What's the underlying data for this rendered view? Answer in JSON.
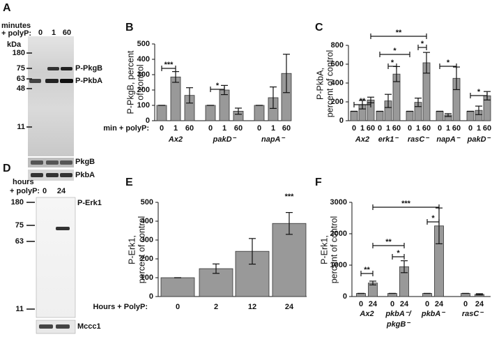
{
  "blots": {
    "A": {
      "panel": "A",
      "header": [
        "minutes",
        "+ polyP:"
      ],
      "lanes": [
        "0",
        "1",
        "60"
      ],
      "unit": "kDa",
      "markers": [
        "180",
        "75",
        "63",
        "48",
        "11"
      ],
      "bands": [
        "P-PkgB",
        "P-PkbA"
      ],
      "strips": [
        "PkgB",
        "PkbA"
      ]
    },
    "D": {
      "panel": "D",
      "header": [
        "hours",
        "+ polyP:"
      ],
      "lanes": [
        "0",
        "24"
      ],
      "markers": [
        "180",
        "75",
        "63",
        "11"
      ],
      "bands": [
        "P-Erk1"
      ],
      "strips": [
        "Mccc1"
      ]
    }
  },
  "chart_data": [
    {
      "type": "bar",
      "panel": "B",
      "ylabel": [
        "P-PkgB, percent",
        "of control"
      ],
      "xlabel": "min + polyP:",
      "ylim": [
        0,
        500
      ],
      "yticks": [
        0,
        100,
        200,
        300,
        400,
        500
      ],
      "color": "#999999",
      "groups": [
        {
          "name": "Ax2",
          "categories": [
            "0",
            "1",
            "60"
          ],
          "values": [
            100,
            285,
            165
          ],
          "errors": [
            0,
            35,
            50
          ]
        },
        {
          "name": "pakD⁻",
          "categories": [
            "0",
            "1",
            "60"
          ],
          "values": [
            100,
            200,
            62
          ],
          "errors": [
            0,
            30,
            20
          ]
        },
        {
          "name": "napA⁻",
          "categories": [
            "0",
            "1",
            "60"
          ],
          "values": [
            100,
            150,
            308
          ],
          "errors": [
            0,
            70,
            125
          ]
        }
      ],
      "annotations": [
        "***",
        "*"
      ]
    },
    {
      "type": "bar",
      "panel": "C",
      "ylabel": [
        "P-PkbA,",
        "percent of control"
      ],
      "ylim": [
        0,
        800
      ],
      "yticks": [
        0,
        200,
        400,
        600,
        800
      ],
      "color": "#999999",
      "groups": [
        {
          "name": "Ax2",
          "categories": [
            "0",
            "1",
            "60"
          ],
          "values": [
            100,
            170,
            220
          ],
          "errors": [
            0,
            45,
            30
          ]
        },
        {
          "name": "erk1⁻",
          "categories": [
            "0",
            "1",
            "60"
          ],
          "values": [
            100,
            210,
            495
          ],
          "errors": [
            0,
            70,
            80
          ]
        },
        {
          "name": "rasC⁻",
          "categories": [
            "0",
            "1",
            "60"
          ],
          "values": [
            100,
            195,
            615
          ],
          "errors": [
            0,
            45,
            110
          ]
        },
        {
          "name": "napA⁻",
          "categories": [
            "0",
            "1",
            "60"
          ],
          "values": [
            100,
            60,
            450
          ],
          "errors": [
            0,
            15,
            120
          ]
        },
        {
          "name": "pakD⁻",
          "categories": [
            "0",
            "1",
            "60"
          ],
          "values": [
            100,
            110,
            265
          ],
          "errors": [
            0,
            45,
            45
          ]
        }
      ],
      "annotations": [
        "**",
        "*",
        "*",
        "**",
        "*",
        "*",
        "*"
      ]
    },
    {
      "type": "bar",
      "panel": "E",
      "ylabel": [
        "P-Erk1,",
        "percent of control"
      ],
      "xlabel": "Hours + PolyP:",
      "ylim": [
        0,
        500
      ],
      "yticks": [
        0,
        100,
        200,
        300,
        400,
        500
      ],
      "color": "#999999",
      "categories": [
        "0",
        "2",
        "12",
        "24"
      ],
      "values": [
        100,
        148,
        240,
        388
      ],
      "errors": [
        0,
        25,
        68,
        58
      ],
      "annotations": [
        "***"
      ]
    },
    {
      "type": "bar",
      "panel": "F",
      "ylabel": [
        "P-Erk1,",
        "percent of control"
      ],
      "ylim": [
        0,
        3000
      ],
      "yticks": [
        0,
        1000,
        2000,
        3000
      ],
      "color": "#999999",
      "groups": [
        {
          "name": "Ax2",
          "categories": [
            "0",
            "24"
          ],
          "values": [
            100,
            430
          ],
          "errors": [
            0,
            60
          ]
        },
        {
          "name": "pkbA⁻/pkgB⁻",
          "categories": [
            "0",
            "24"
          ],
          "values": [
            100,
            950
          ],
          "errors": [
            0,
            190
          ]
        },
        {
          "name": "pkbA⁻",
          "categories": [
            "0",
            "24"
          ],
          "values": [
            100,
            2250
          ],
          "errors": [
            0,
            570
          ]
        },
        {
          "name": "rasC⁻",
          "categories": [
            "0",
            "24"
          ],
          "values": [
            100,
            70
          ],
          "errors": [
            0,
            20
          ]
        }
      ],
      "annotations": [
        "**",
        "*",
        "**",
        "*",
        "***"
      ]
    }
  ]
}
